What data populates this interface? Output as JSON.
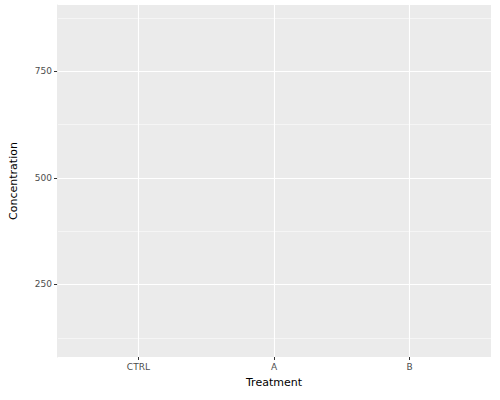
{
  "chart_data": {
    "type": "scatter",
    "x_label": "Treatment",
    "y_label": "Concentration",
    "categories": [
      "CTRL",
      "A",
      "B"
    ],
    "values": [
      null,
      null,
      null
    ],
    "ylim": [
      80,
      905
    ],
    "yticks": [
      250,
      500,
      750
    ],
    "grid": true
  }
}
